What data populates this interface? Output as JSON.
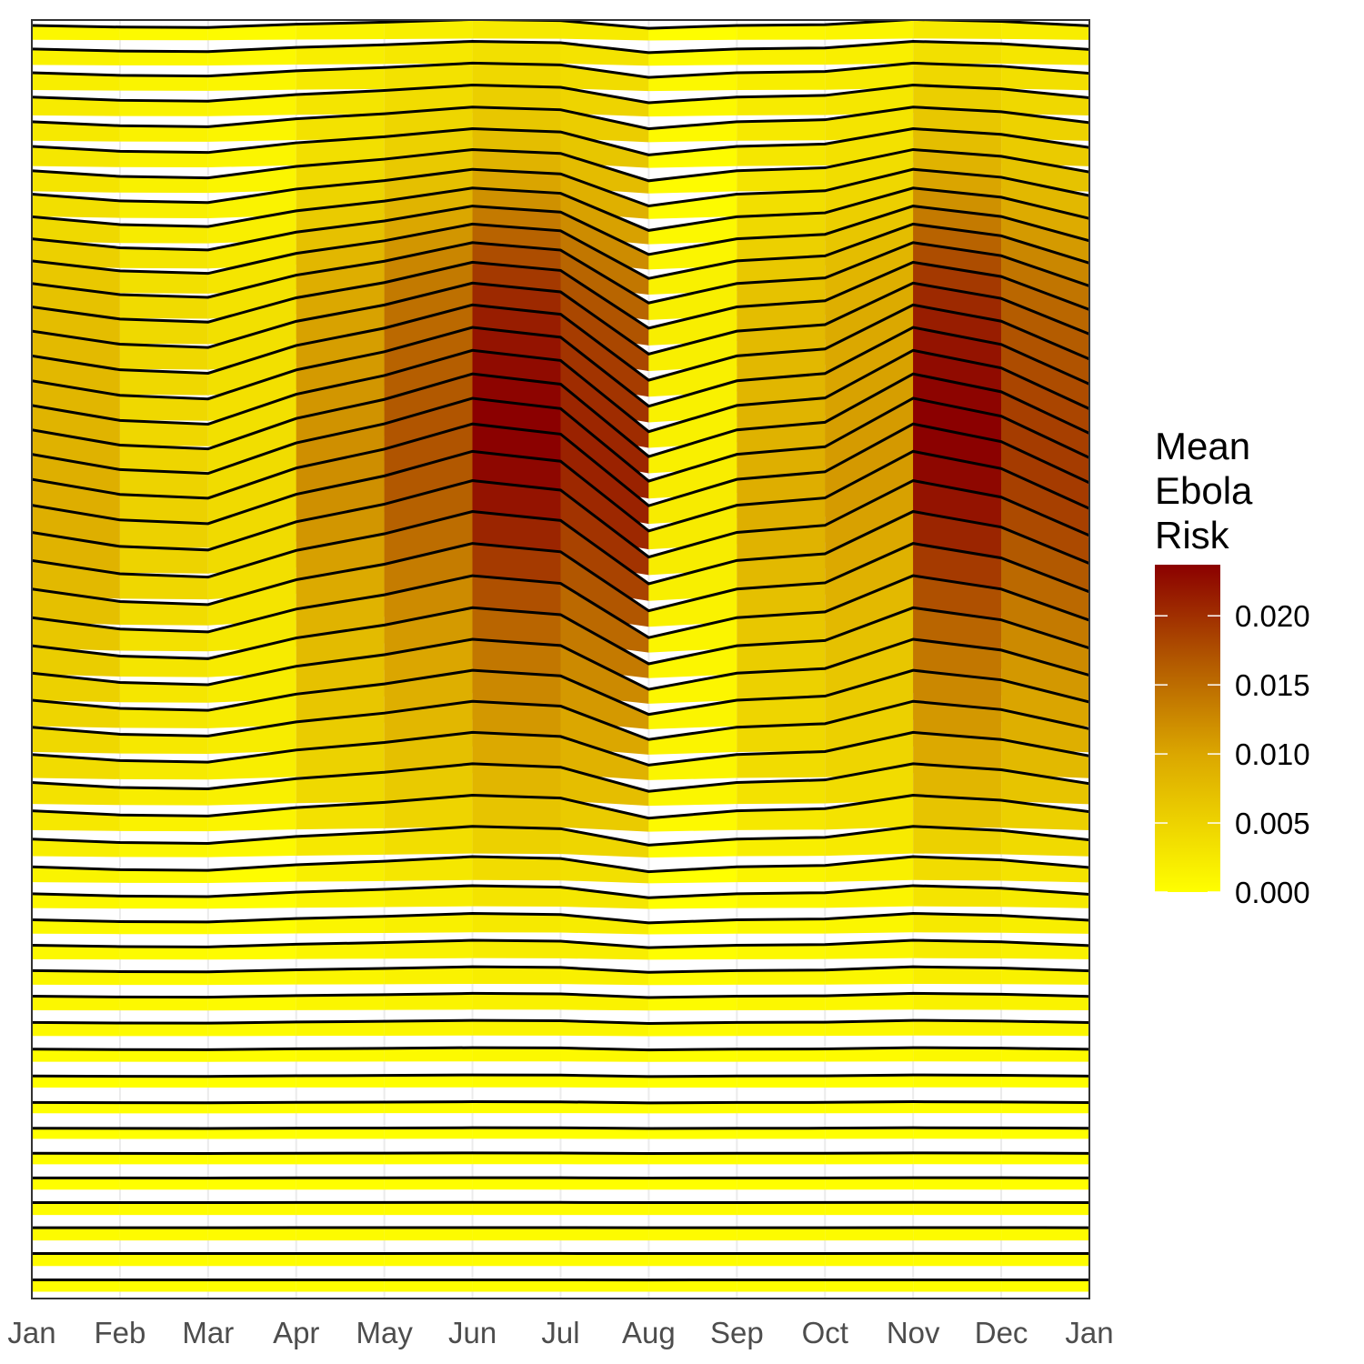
{
  "chart_data": {
    "type": "ridgeline",
    "x_tick_labels": [
      "Jan",
      "Feb",
      "Mar",
      "Apr",
      "May",
      "Jun",
      "Jul",
      "Aug",
      "Sep",
      "Oct",
      "Nov",
      "Dec",
      "Jan"
    ],
    "title": "",
    "xlabel": "",
    "ylabel": "",
    "legend": {
      "title_lines": [
        "Mean",
        "Ebola",
        "Risk"
      ],
      "ticks": [
        0.0,
        0.005,
        0.01,
        0.015,
        0.02
      ],
      "tick_labels": [
        "0.000",
        "0.005",
        "0.010",
        "0.015",
        "0.020"
      ],
      "range": [
        0.0,
        0.0237
      ],
      "colors": [
        "#ffff00",
        "#dba700",
        "#8b0000"
      ],
      "position": "right"
    },
    "series_count": 50,
    "monthly_mean_risk": {
      "months": [
        "Jan",
        "Feb",
        "Mar",
        "Apr",
        "May",
        "Jun",
        "Jul",
        "Aug",
        "Sep",
        "Oct",
        "Nov",
        "Dec"
      ],
      "peak_value": [
        0.009,
        0.005,
        0.004,
        0.012,
        0.017,
        0.0237,
        0.021,
        0.002,
        0.009,
        0.011,
        0.0237,
        0.019
      ]
    },
    "grid": true
  }
}
